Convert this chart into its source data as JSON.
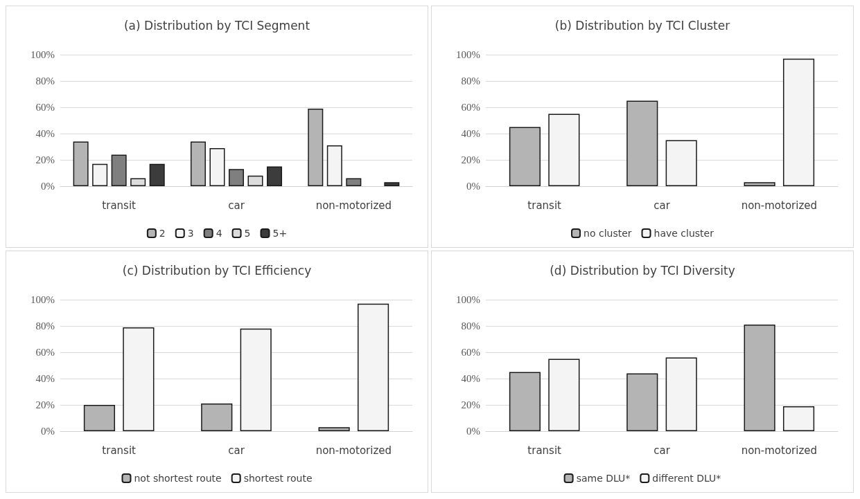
{
  "chart_data": [
    {
      "type": "bar",
      "title": "(a) Distribution by TCI Segment",
      "categories": [
        "transit",
        "car",
        "non-motorized"
      ],
      "ylim": [
        0,
        100
      ],
      "yticks": [
        {
          "value": 0,
          "label": "0%"
        },
        {
          "value": 20,
          "label": "20%"
        },
        {
          "value": 40,
          "label": "40%"
        },
        {
          "value": 60,
          "label": "60%"
        },
        {
          "value": 80,
          "label": "80%"
        },
        {
          "value": 100,
          "label": "100%"
        }
      ],
      "grid": "y",
      "legend": "bottom",
      "series": [
        {
          "name": "2",
          "color": "#b4b4b4",
          "values": [
            34,
            34,
            59
          ]
        },
        {
          "name": "3",
          "color": "#f4f4f4",
          "values": [
            17,
            29,
            31
          ]
        },
        {
          "name": "4",
          "color": "#7f7f7f",
          "values": [
            24,
            13,
            6
          ]
        },
        {
          "name": "5",
          "color": "#dcdcdc",
          "values": [
            6,
            8,
            null
          ]
        },
        {
          "name": "5+",
          "color": "#3c3c3c",
          "values": [
            17,
            15,
            3
          ]
        }
      ]
    },
    {
      "type": "bar",
      "title": "(b) Distribution by TCI Cluster",
      "categories": [
        "transit",
        "car",
        "non-motorized"
      ],
      "ylim": [
        0,
        100
      ],
      "yticks": [
        {
          "value": 0,
          "label": "0%"
        },
        {
          "value": 20,
          "label": "20%"
        },
        {
          "value": 40,
          "label": "40%"
        },
        {
          "value": 60,
          "label": "60%"
        },
        {
          "value": 80,
          "label": "80%"
        },
        {
          "value": 100,
          "label": "100%"
        }
      ],
      "grid": "y",
      "legend": "bottom",
      "series": [
        {
          "name": "no cluster",
          "color": "#b4b4b4",
          "values": [
            45,
            65,
            3
          ]
        },
        {
          "name": "have cluster",
          "color": "#f4f4f4",
          "values": [
            55,
            35,
            97
          ]
        }
      ]
    },
    {
      "type": "bar",
      "title": "(c) Distribution by TCI Efficiency",
      "categories": [
        "transit",
        "car",
        "non-motorized"
      ],
      "ylim": [
        0,
        100
      ],
      "yticks": [
        {
          "value": 0,
          "label": "0%"
        },
        {
          "value": 20,
          "label": "20%"
        },
        {
          "value": 40,
          "label": "40%"
        },
        {
          "value": 60,
          "label": "60%"
        },
        {
          "value": 80,
          "label": "80%"
        },
        {
          "value": 100,
          "label": "100%"
        }
      ],
      "grid": "y",
      "legend": "bottom",
      "series": [
        {
          "name": "not shortest route",
          "color": "#b4b4b4",
          "values": [
            20,
            21,
            3
          ]
        },
        {
          "name": "shortest route",
          "color": "#f4f4f4",
          "values": [
            79,
            78,
            97
          ]
        }
      ]
    },
    {
      "type": "bar",
      "title": "(d) Distribution by TCI Diversity",
      "categories": [
        "transit",
        "car",
        "non-motorized"
      ],
      "ylim": [
        0,
        100
      ],
      "yticks": [
        {
          "value": 0,
          "label": "0%"
        },
        {
          "value": 20,
          "label": "20%"
        },
        {
          "value": 40,
          "label": "40%"
        },
        {
          "value": 60,
          "label": "60%"
        },
        {
          "value": 80,
          "label": "80%"
        },
        {
          "value": 100,
          "label": "100%"
        }
      ],
      "grid": "y",
      "legend": "bottom",
      "series": [
        {
          "name": "same DLU*",
          "color": "#b4b4b4",
          "values": [
            45,
            44,
            81
          ]
        },
        {
          "name": "different DLU*",
          "color": "#f4f4f4",
          "values": [
            55,
            56,
            19
          ]
        }
      ]
    }
  ]
}
